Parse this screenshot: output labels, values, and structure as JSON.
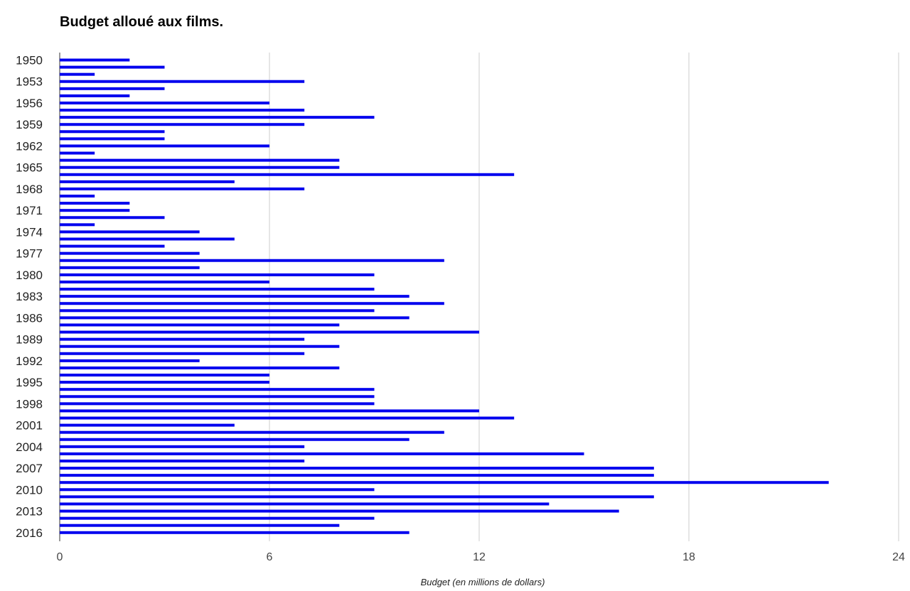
{
  "chart_data": {
    "type": "bar",
    "orientation": "horizontal",
    "title": "Budget alloué aux films.",
    "xlabel": "Budget (en millions de dollars)",
    "ylabel": "",
    "xlim": [
      0,
      24
    ],
    "x_ticks": [
      "0",
      "6",
      "12",
      "18",
      "24"
    ],
    "grid": true,
    "bar_color": "#0000ee",
    "categories": [
      "1950",
      "1951",
      "1952",
      "1953",
      "1954",
      "1955",
      "1956",
      "1957",
      "1958",
      "1959",
      "1960",
      "1961",
      "1962",
      "1963",
      "1964",
      "1965",
      "1966",
      "1967",
      "1968",
      "1969",
      "1970",
      "1971",
      "1972",
      "1973",
      "1974",
      "1975",
      "1976",
      "1977",
      "1978",
      "1979",
      "1980",
      "1981",
      "1982",
      "1983",
      "1984",
      "1985",
      "1986",
      "1987",
      "1988",
      "1989",
      "1990",
      "1991",
      "1992",
      "1993",
      "1994",
      "1995",
      "1996",
      "1997",
      "1998",
      "1999",
      "2000",
      "2001",
      "2002",
      "2003",
      "2004",
      "2005",
      "2006",
      "2007",
      "2008",
      "2009",
      "2010",
      "2011",
      "2012",
      "2013",
      "2014",
      "2015",
      "2016"
    ],
    "y_tick_labels": [
      "1950",
      "1953",
      "1956",
      "1959",
      "1962",
      "1965",
      "1968",
      "1971",
      "1974",
      "1977",
      "1980",
      "1983",
      "1986",
      "1989",
      "1992",
      "1995",
      "1998",
      "2001",
      "2004",
      "2007",
      "2010",
      "2013",
      "2016"
    ],
    "values": [
      2,
      3,
      1,
      7,
      3,
      2,
      6,
      7,
      9,
      7,
      3,
      3,
      6,
      1,
      8,
      8,
      13,
      5,
      7,
      1,
      2,
      2,
      3,
      1,
      4,
      5,
      3,
      4,
      11,
      4,
      9,
      6,
      9,
      10,
      11,
      9,
      10,
      8,
      12,
      7,
      8,
      7,
      4,
      8,
      6,
      6,
      9,
      9,
      9,
      12,
      13,
      5,
      11,
      10,
      7,
      15,
      7,
      17,
      17,
      22,
      9,
      17,
      14,
      16,
      9,
      8,
      10
    ]
  }
}
